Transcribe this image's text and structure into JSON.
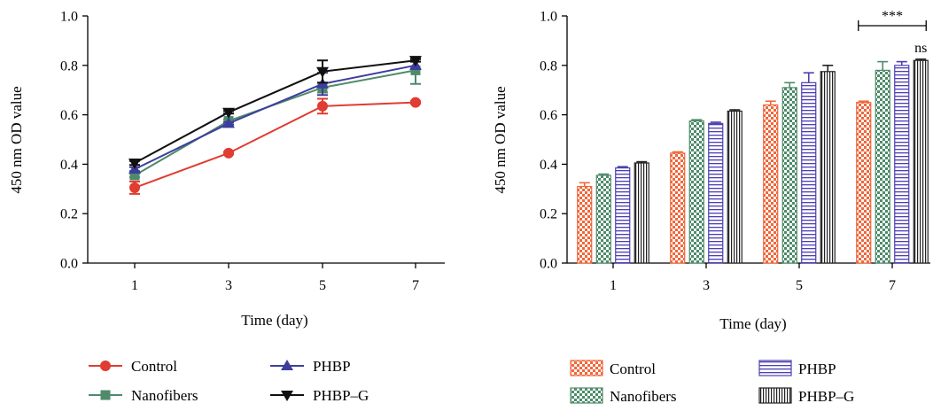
{
  "chart_data": [
    {
      "type": "line",
      "x": [
        1,
        3,
        5,
        7
      ],
      "xlabel": "Time (day)",
      "ylabel": "450 nm OD value",
      "ylim": [
        0,
        1.0
      ],
      "yticks": [
        "0.0",
        "0.2",
        "0.4",
        "0.6",
        "0.8",
        "1.0"
      ],
      "xticks": [
        "1",
        "3",
        "5",
        "7"
      ],
      "grid": false,
      "legend_position": "bottom",
      "series": [
        {
          "name": "Control",
          "values": [
            0.305,
            0.445,
            0.635,
            0.65
          ],
          "errors": [
            0.025,
            0.005,
            0.03,
            0.005
          ],
          "color": "#e03c31",
          "marker": "circle"
        },
        {
          "name": "Nanofibers",
          "values": [
            0.355,
            0.575,
            0.71,
            0.78
          ],
          "errors": [
            0.008,
            0.005,
            0.02,
            0.055
          ],
          "color": "#4e8b6a",
          "marker": "square"
        },
        {
          "name": "PHBP",
          "values": [
            0.38,
            0.565,
            0.725,
            0.8
          ],
          "errors": [
            0.008,
            0.005,
            0.045,
            0.015
          ],
          "color": "#3d3d9e",
          "marker": "triangle-up"
        },
        {
          "name": "PHBP–G",
          "values": [
            0.405,
            0.61,
            0.775,
            0.82
          ],
          "errors": [
            0.008,
            0.005,
            0.045,
            0.005
          ],
          "color": "#111111",
          "marker": "triangle-down"
        }
      ]
    },
    {
      "type": "bar",
      "categories": [
        "1",
        "3",
        "5",
        "7"
      ],
      "xlabel": "Time (day)",
      "ylabel": "450 nm OD value",
      "ylim": [
        0,
        1.0
      ],
      "yticks": [
        "0.0",
        "0.2",
        "0.4",
        "0.6",
        "0.8",
        "1.0"
      ],
      "grid": false,
      "legend_position": "bottom",
      "series": [
        {
          "name": "Control",
          "values": [
            0.31,
            0.445,
            0.64,
            0.65
          ],
          "errors": [
            0.015,
            0.005,
            0.015,
            0.005
          ],
          "color": "#f0673b",
          "pattern": "checker"
        },
        {
          "name": "Nanofibers",
          "values": [
            0.355,
            0.575,
            0.71,
            0.78
          ],
          "errors": [
            0.005,
            0.005,
            0.02,
            0.035
          ],
          "color": "#4e8b6a",
          "pattern": "checker"
        },
        {
          "name": "PHBP",
          "values": [
            0.385,
            0.565,
            0.73,
            0.8
          ],
          "errors": [
            0.005,
            0.005,
            0.04,
            0.015
          ],
          "color": "#4b3fb3",
          "pattern": "horizontal-lines"
        },
        {
          "name": "PHBP–G",
          "values": [
            0.405,
            0.615,
            0.775,
            0.82
          ],
          "errors": [
            0.005,
            0.005,
            0.025,
            0.005
          ],
          "color": "#222222",
          "pattern": "vertical-lines"
        }
      ],
      "annotations": [
        {
          "text": "***",
          "category": "7",
          "type": "bracket"
        },
        {
          "text": "ns",
          "category": "7"
        }
      ]
    }
  ]
}
